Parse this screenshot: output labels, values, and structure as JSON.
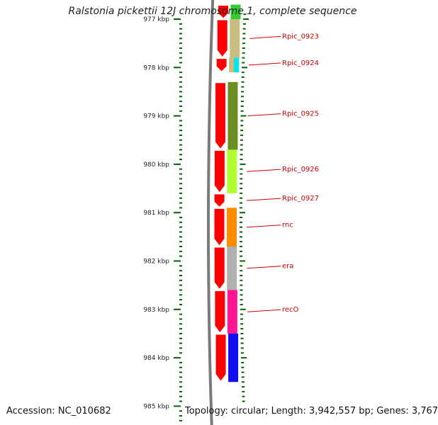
{
  "title": "Ralstonia pickettii 12J chromosome 1, complete sequence",
  "accession": "Accession: NC_010682",
  "topology": "Topology: circular; Length: 3,942,557 bp; Genes: 3,767",
  "ticks": [
    {
      "label": "977 kbp",
      "kbp": 977
    },
    {
      "label": "978 kbp",
      "kbp": 978
    },
    {
      "label": "979 kbp",
      "kbp": 979
    },
    {
      "label": "980 kbp",
      "kbp": 980
    },
    {
      "label": "981 kbp",
      "kbp": 981
    },
    {
      "label": "982 kbp",
      "kbp": 982
    },
    {
      "label": "983 kbp",
      "kbp": 983
    },
    {
      "label": "984 kbp",
      "kbp": 984
    },
    {
      "label": "985 kbp",
      "kbp": 985
    }
  ],
  "genes": [
    {
      "name": "",
      "start": 976.7,
      "end": 977.0,
      "color": "#33cc33"
    },
    {
      "name": "Rpic_0923",
      "start": 977.0,
      "end": 977.8,
      "color": "#c8bc80"
    },
    {
      "name": "Rpic_0924",
      "start": 977.8,
      "end": 978.1,
      "color": "#c8bc80",
      "sub": {
        "start": 977.8,
        "end": 978.1,
        "color": "#00e5ee"
      }
    },
    {
      "name": "Rpic_0925",
      "start": 978.3,
      "end": 979.7,
      "color": "#6b8e23"
    },
    {
      "name": "Rpic_0926",
      "start": 979.7,
      "end": 980.6,
      "color": "#adff2f"
    },
    {
      "name": "Rpic_0927",
      "start": 980.6,
      "end": 980.9,
      "color": "#ffffff"
    },
    {
      "name": "rnc",
      "start": 980.9,
      "end": 981.7,
      "color": "#ff8c00"
    },
    {
      "name": "era",
      "start": 981.7,
      "end": 982.6,
      "color": "#b0b0b0"
    },
    {
      "name": "recO",
      "start": 982.6,
      "end": 983.5,
      "color": "#ff1493"
    },
    {
      "name": "",
      "start": 983.5,
      "end": 984.5,
      "color": "#1010ee"
    }
  ],
  "colors": {
    "cds": "#ff0000",
    "ruler": "#7a7a7a",
    "tick": "#006400",
    "label": "#cc0000"
  }
}
